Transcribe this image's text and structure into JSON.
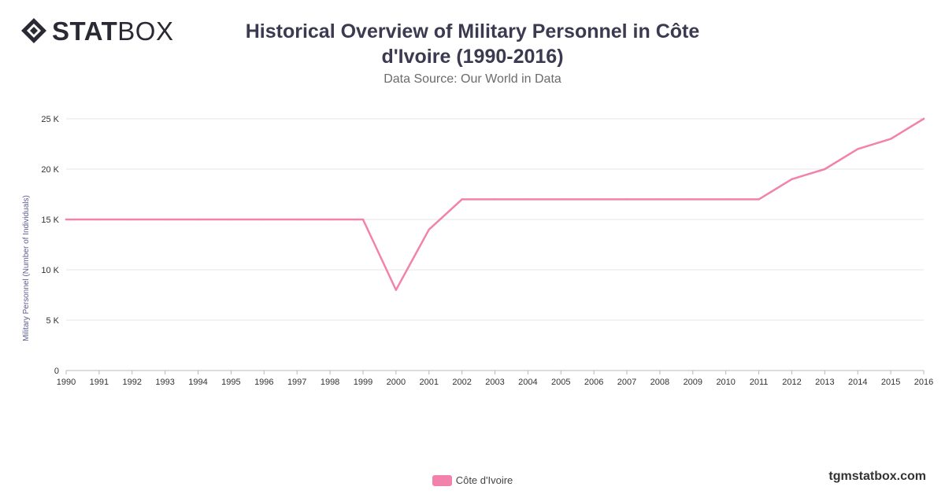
{
  "brand": {
    "logo_bold": "STAT",
    "logo_thin": "BOX"
  },
  "header": {
    "title": "Historical Overview of Military Personnel in Côte d'Ivoire (1990-2016)",
    "subtitle": "Data Source: Our World in Data"
  },
  "footer": {
    "site": "tgmstatbox.com"
  },
  "colors": {
    "line": "#f282ac",
    "grid": "#e4e4e4",
    "axis_text": "#333333",
    "ylabel_text": "#5e5e90"
  },
  "chart_data": {
    "type": "line",
    "title": "Historical Overview of Military Personnel in Côte d'Ivoire (1990-2016)",
    "subtitle": "Data Source: Our World in Data",
    "xlabel": "",
    "ylabel": "Military Personnel (Number of Individuals)",
    "x": [
      1990,
      1991,
      1992,
      1993,
      1994,
      1995,
      1996,
      1997,
      1998,
      1999,
      2000,
      2001,
      2002,
      2003,
      2004,
      2005,
      2006,
      2007,
      2008,
      2009,
      2010,
      2011,
      2012,
      2013,
      2014,
      2015,
      2016
    ],
    "series": [
      {
        "name": "Côte d'Ivoire",
        "values": [
          15000,
          15000,
          15000,
          15000,
          15000,
          15000,
          15000,
          15000,
          15000,
          15000,
          8000,
          14000,
          17000,
          17000,
          17000,
          17000,
          17000,
          17000,
          17000,
          17000,
          17000,
          17000,
          19000,
          20000,
          22000,
          23000,
          25000
        ]
      }
    ],
    "ylim": [
      0,
      25000
    ],
    "yticks": [
      0,
      5000,
      10000,
      15000,
      20000,
      25000
    ],
    "ytick_labels": [
      "0",
      "5 K",
      "10 K",
      "15 K",
      "20 K",
      "25 K"
    ],
    "grid": true,
    "legend_position": "bottom-center"
  }
}
